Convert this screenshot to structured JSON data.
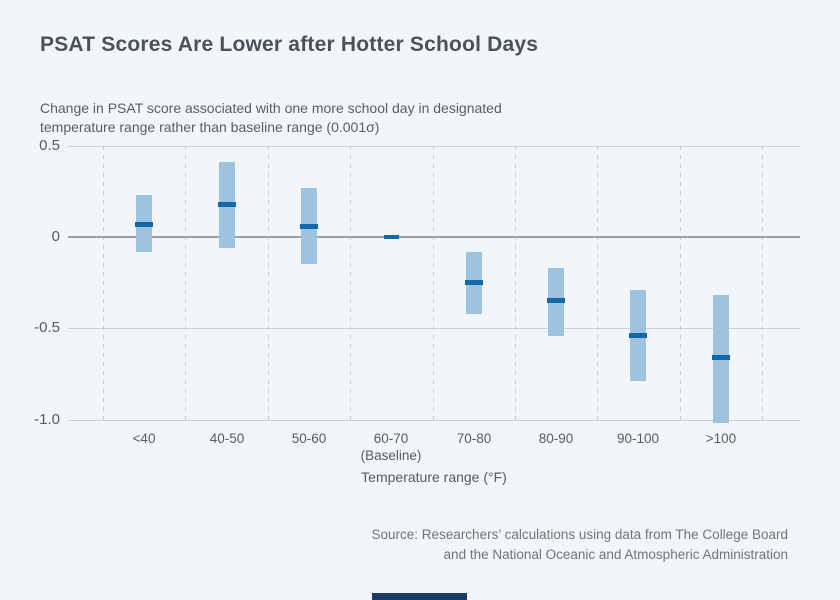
{
  "chart_data": {
    "type": "bar",
    "subtype": "point-estimate-with-confidence-interval",
    "title": "PSAT Scores Are Lower after Hotter School Days",
    "subtitle_line1": "Change in PSAT score associated with one more school day in designated",
    "subtitle_line2": "temperature range rather than baseline range (0.001σ)",
    "xlabel": "Temperature range (°F)",
    "source_line1": "Source: Researchers’ calculations using data from The College Board",
    "source_line2": "and the National Oceanic and Atmospheric Administration",
    "categories": [
      "<40",
      "40-50",
      "50-60",
      "60-70",
      "70-80",
      "80-90",
      "90-100",
      ">100"
    ],
    "baseline_category": "60-70",
    "baseline_sublabel": "(Baseline)",
    "series": [
      {
        "name": "Point estimate",
        "values": [
          0.07,
          0.18,
          0.06,
          0.0,
          -0.25,
          -0.35,
          -0.54,
          -0.66
        ]
      },
      {
        "name": "CI low",
        "values": [
          -0.08,
          -0.06,
          -0.15,
          null,
          -0.42,
          -0.54,
          -0.79,
          -1.02
        ]
      },
      {
        "name": "CI high",
        "values": [
          0.23,
          0.41,
          0.27,
          null,
          -0.08,
          -0.17,
          -0.29,
          -0.32
        ]
      }
    ],
    "yticks": [
      0.5,
      0,
      -0.5,
      -1.0
    ],
    "ytick_labels": [
      "0.5",
      "0",
      "-0.5",
      "-1.0"
    ],
    "ylim": [
      -1.05,
      0.5
    ],
    "grid": {
      "horizontal": "solid",
      "vertical": "dashed-between-categories",
      "legend": "none"
    },
    "colors": {
      "background": "#f2f6f9",
      "ci_bar": "#9dc3e1",
      "point_estimate": "#1268ab",
      "zero_line": "#9aa0a5",
      "gridline": "#cdd2d6",
      "dashed_gridline": "#c6ccd2",
      "title_text": "#4a525a",
      "accent_bar": "#1b3a67"
    }
  }
}
